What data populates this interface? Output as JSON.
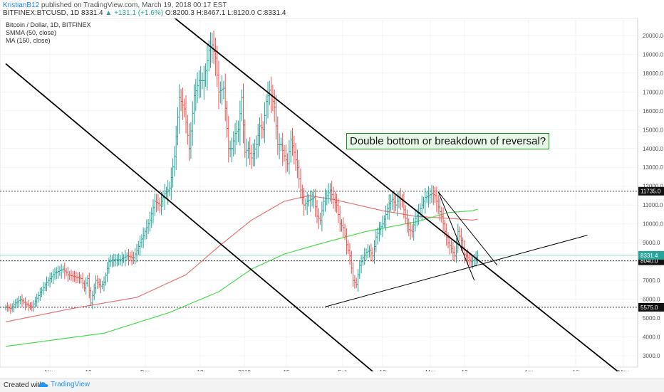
{
  "header": {
    "author": "KristianB12",
    "published": "published on TradingView.com, March 19, 2018 00:17 EST",
    "symbol": "BITFINEX:BTCUSD, 1D",
    "last": "8331.4",
    "change": "+131.1 (+1.6%)",
    "ohlc": "O:8200.3 H:8467.1 L:8120.0 C:8331.4"
  },
  "legend": {
    "series_name": "Bitcoin / Dollar, 1D, BITFINEX",
    "smma": "SMMA (50, close)",
    "ma": "MA (150, close)"
  },
  "annotation": "Double bottom or breakdown of reversal?",
  "footer": {
    "created_with": "Created with",
    "brand": "TradingView"
  },
  "colors": {
    "up": "#26a69a",
    "down": "#ef5350",
    "smma": "#e57373",
    "ma": "#4cd94c",
    "trend": "#000000"
  },
  "chart_data": {
    "type": "ohlc",
    "x_tick_labels": [
      "Nov",
      "13",
      "Dec",
      "18",
      "2018",
      "15",
      "Feb",
      "12",
      "Mar",
      "12",
      "Apr",
      "16",
      "May"
    ],
    "y_ticks": [
      3000,
      4000,
      5000,
      6000,
      7000,
      8000,
      9000,
      10000,
      11000,
      12000,
      13000,
      14000,
      15000,
      16000,
      17000,
      18000,
      19000,
      20000
    ],
    "y_tick_labels": [
      "3000.0",
      "4000.0",
      "5000.0",
      "6000.0",
      "7000.0",
      "8000.0",
      "9000.0",
      "10000.0",
      "11000.0",
      "12000.0",
      "13000.0",
      "14000.0",
      "15000.0",
      "16000.0",
      "17000.0",
      "18000.0",
      "19000.0",
      "20000.0"
    ],
    "ylim": [
      2400,
      20900
    ],
    "horizontal_levels": [
      {
        "value": 11735,
        "label": "11735.0"
      },
      {
        "value": 8040,
        "label": "8040.0"
      },
      {
        "value": 5575,
        "label": "5575.0"
      }
    ],
    "last_price": {
      "value": 8331.4,
      "label": "8331.4"
    },
    "price_anchors": [
      [
        0,
        5600
      ],
      [
        3,
        5500
      ],
      [
        6,
        5800
      ],
      [
        9,
        6000
      ],
      [
        12,
        5750
      ],
      [
        16,
        5600
      ],
      [
        20,
        6200
      ],
      [
        25,
        6900
      ],
      [
        30,
        7400
      ],
      [
        35,
        7600
      ],
      [
        38,
        7300
      ],
      [
        42,
        7200
      ],
      [
        46,
        7100
      ],
      [
        48,
        6600
      ],
      [
        50,
        7100
      ],
      [
        52,
        5800
      ],
      [
        55,
        7000
      ],
      [
        58,
        6700
      ],
      [
        60,
        6900
      ],
      [
        63,
        8000
      ],
      [
        66,
        8100
      ],
      [
        70,
        8100
      ],
      [
        74,
        8300
      ],
      [
        78,
        8200
      ],
      [
        82,
        9000
      ],
      [
        86,
        9800
      ],
      [
        88,
        10200
      ],
      [
        91,
        11200
      ],
      [
        94,
        11000
      ],
      [
        97,
        11600
      ],
      [
        100,
        11900
      ],
      [
        103,
        13600
      ],
      [
        106,
        16700
      ],
      [
        109,
        16100
      ],
      [
        112,
        14000
      ],
      [
        115,
        16800
      ],
      [
        118,
        17600
      ],
      [
        121,
        17600
      ],
      [
        124,
        19200
      ],
      [
        126,
        19500
      ],
      [
        128,
        18800
      ],
      [
        130,
        17000
      ],
      [
        133,
        17200
      ],
      [
        136,
        14000
      ],
      [
        138,
        14000
      ],
      [
        140,
        14800
      ],
      [
        142,
        15000
      ],
      [
        144,
        16700
      ],
      [
        146,
        13800
      ],
      [
        148,
        14000
      ],
      [
        150,
        13500
      ],
      [
        153,
        14200
      ],
      [
        155,
        15200
      ],
      [
        157,
        15000
      ],
      [
        159,
        16500
      ],
      [
        161,
        17100
      ],
      [
        164,
        16200
      ],
      [
        166,
        14200
      ],
      [
        168,
        14200
      ],
      [
        170,
        13600
      ],
      [
        172,
        13200
      ],
      [
        174,
        14500
      ],
      [
        176,
        13800
      ],
      [
        178,
        13000
      ],
      [
        180,
        11800
      ],
      [
        182,
        11000
      ],
      [
        184,
        11200
      ],
      [
        186,
        11300
      ],
      [
        188,
        11400
      ],
      [
        190,
        10400
      ],
      [
        192,
        10200
      ],
      [
        194,
        11200
      ],
      [
        196,
        11500
      ],
      [
        198,
        11800
      ],
      [
        200,
        11300
      ],
      [
        202,
        11000
      ],
      [
        204,
        10000
      ],
      [
        206,
        9800
      ],
      [
        208,
        8900
      ],
      [
        210,
        8300
      ],
      [
        212,
        7000
      ],
      [
        214,
        6800
      ],
      [
        216,
        7800
      ],
      [
        218,
        8200
      ],
      [
        220,
        8500
      ],
      [
        222,
        8600
      ],
      [
        224,
        8300
      ],
      [
        226,
        9300
      ],
      [
        228,
        9700
      ],
      [
        230,
        10000
      ],
      [
        232,
        10500
      ],
      [
        234,
        11100
      ],
      [
        236,
        11300
      ],
      [
        238,
        11000
      ],
      [
        240,
        11400
      ],
      [
        242,
        11200
      ],
      [
        244,
        10300
      ],
      [
        246,
        9700
      ],
      [
        248,
        9600
      ],
      [
        250,
        10300
      ],
      [
        252,
        10600
      ],
      [
        254,
        11000
      ],
      [
        256,
        11400
      ],
      [
        258,
        11500
      ],
      [
        260,
        11600
      ],
      [
        262,
        11500
      ],
      [
        264,
        10900
      ],
      [
        266,
        10400
      ],
      [
        268,
        9600
      ],
      [
        270,
        9000
      ],
      [
        272,
        8700
      ],
      [
        274,
        8300
      ],
      [
        276,
        9600
      ],
      [
        278,
        9100
      ],
      [
        280,
        8400
      ],
      [
        282,
        8200
      ],
      [
        284,
        8000
      ],
      [
        286,
        8100
      ],
      [
        288,
        8331
      ]
    ],
    "smma_anchors": [
      [
        0,
        4800
      ],
      [
        40,
        5500
      ],
      [
        80,
        6100
      ],
      [
        110,
        7300
      ],
      [
        130,
        8800
      ],
      [
        150,
        10200
      ],
      [
        170,
        11200
      ],
      [
        185,
        11500
      ],
      [
        200,
        11300
      ],
      [
        230,
        10700
      ],
      [
        250,
        10400
      ],
      [
        270,
        10300
      ],
      [
        285,
        10200
      ]
    ],
    "ma_anchors": [
      [
        0,
        3500
      ],
      [
        60,
        4200
      ],
      [
        100,
        5300
      ],
      [
        130,
        6400
      ],
      [
        150,
        7600
      ],
      [
        170,
        8400
      ],
      [
        190,
        8900
      ],
      [
        220,
        9600
      ],
      [
        250,
        10100
      ],
      [
        270,
        10600
      ],
      [
        285,
        10700
      ]
    ],
    "trendlines": [
      [
        [
          0,
          18500
        ],
        [
          240,
          1000
        ]
      ],
      [
        [
          102,
          21000
        ],
        [
          376,
          2000
        ]
      ],
      [
        [
          195,
          5600
        ],
        [
          355,
          9400
        ]
      ],
      [
        [
          264,
          11700
        ],
        [
          300,
          7800
        ]
      ],
      [
        [
          264,
          11700
        ],
        [
          286,
          7000
        ]
      ]
    ],
    "series": [
      {
        "name": "Bitcoin / Dollar, 1D, BITFINEX"
      },
      {
        "name": "SMMA (50, close)"
      },
      {
        "name": "MA (150, close)"
      }
    ],
    "grid": true
  }
}
